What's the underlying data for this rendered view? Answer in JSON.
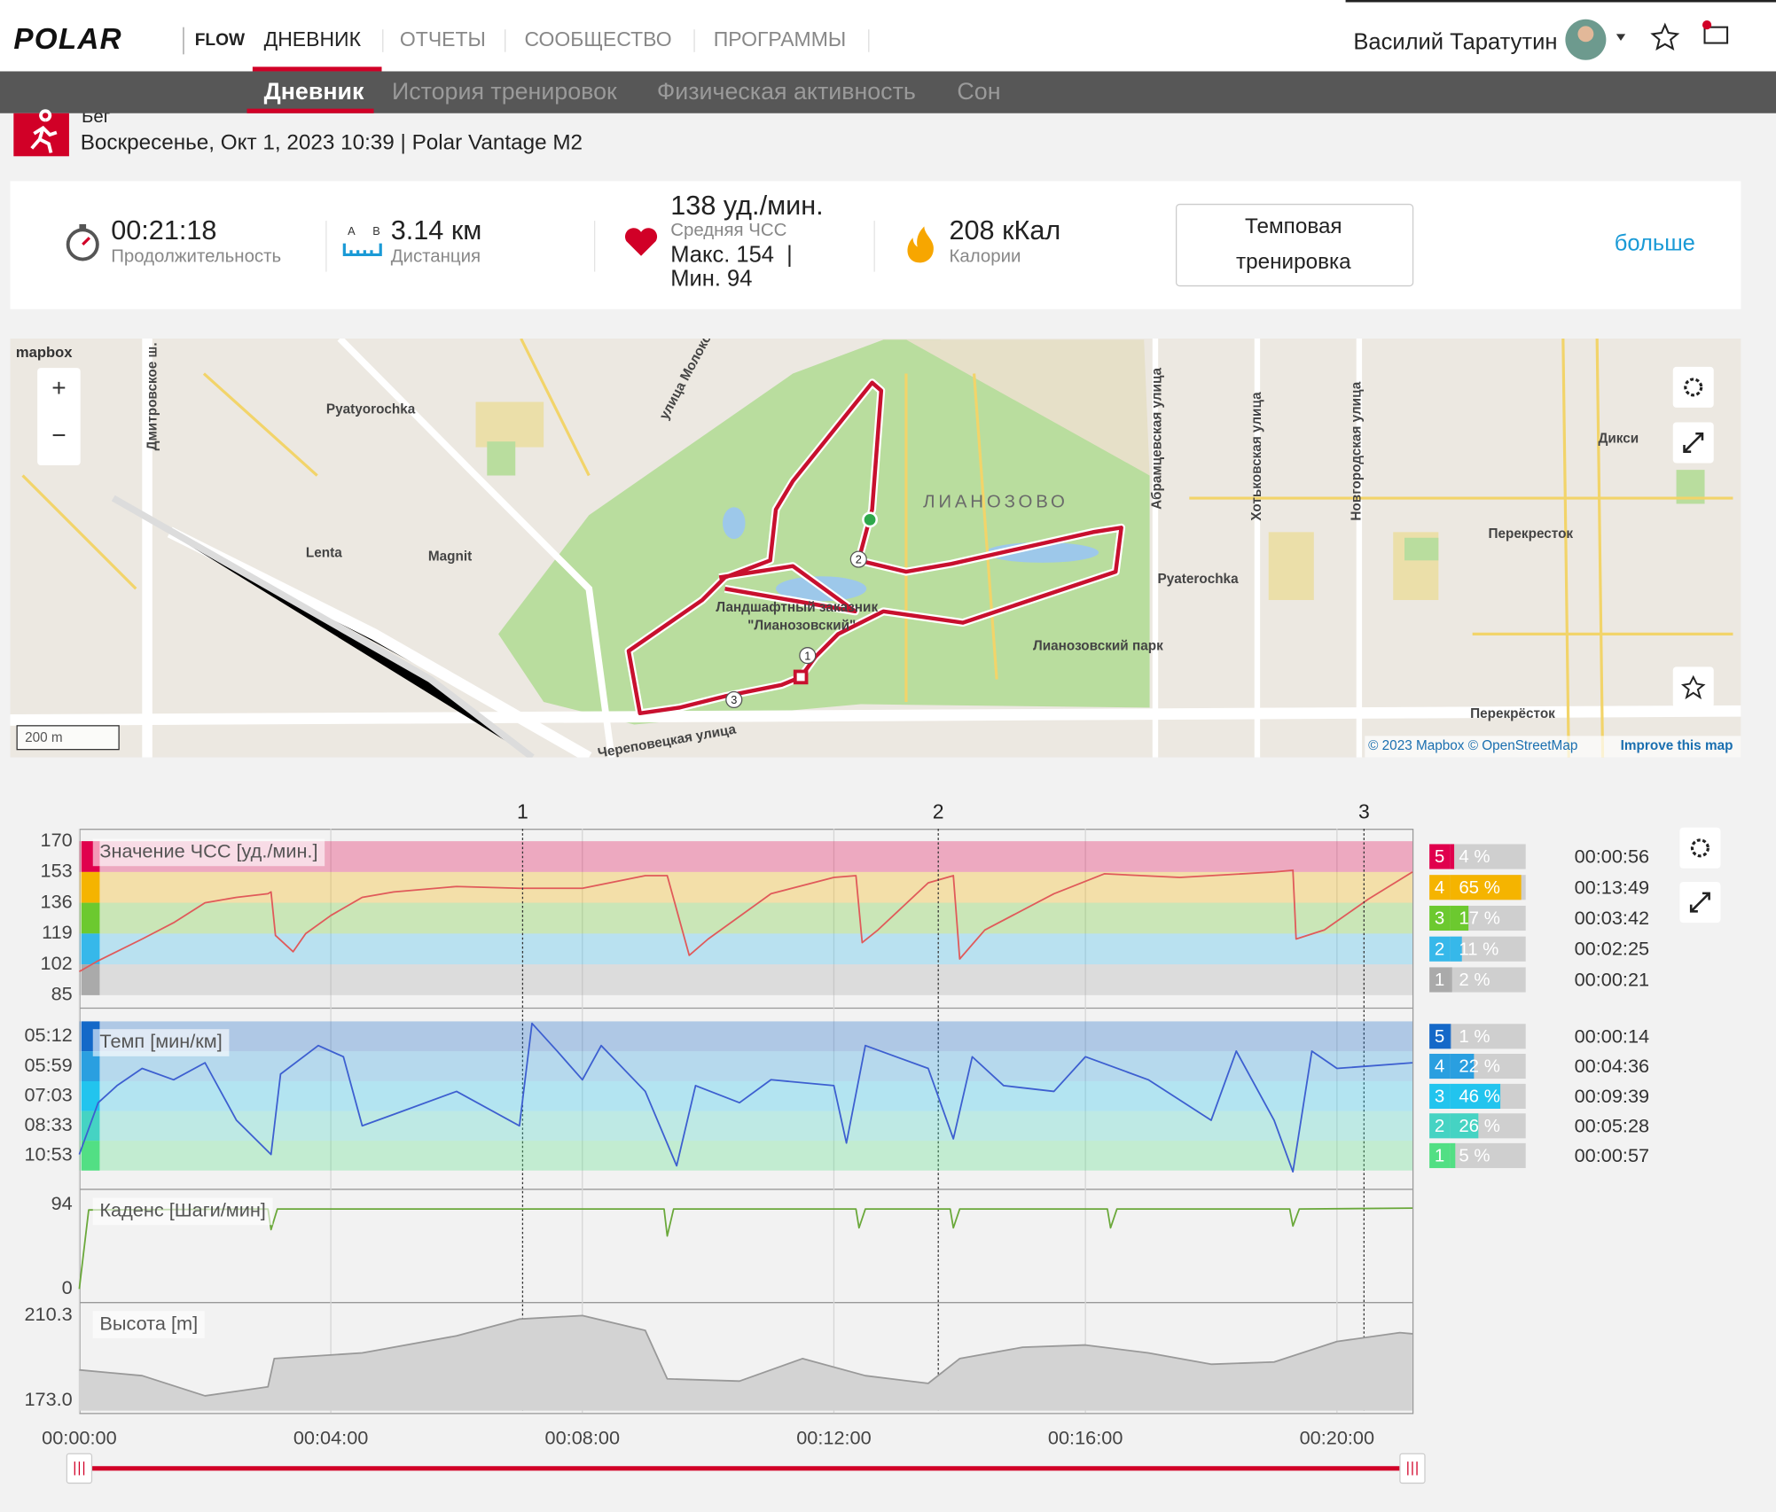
{
  "header": {
    "logo": "POLAR",
    "product": "FLOW",
    "nav": [
      "ДНЕВНИК",
      "ОТЧЕТЫ",
      "СООБЩЕСТВО",
      "ПРОГРАММЫ"
    ],
    "user": "Василий Таратутин"
  },
  "subnav": [
    "Дневник",
    "История тренировок",
    "Физическая активность",
    "Сон"
  ],
  "activity": {
    "sport": "Бег",
    "date": "Воскресенье, Окт 1, 2023 10:39 | Polar Vantage M2"
  },
  "summary": {
    "duration": {
      "value": "00:21:18",
      "label": "Продолжительность"
    },
    "distance": {
      "value": "3.14 км",
      "label": "Дистанция",
      "icon_a": "A",
      "icon_b": "B"
    },
    "heart_rate": {
      "value": "138 уд./мин.",
      "label": "Средняя ЧСС",
      "max": "Макс. 154  |",
      "min": "Мин. 94"
    },
    "calories": {
      "value": "208 кКал",
      "label": "Калории"
    },
    "training_type": [
      "Темповая",
      "тренировка"
    ],
    "more": "больше"
  },
  "map": {
    "logo": "mapbox",
    "zoom_in": "+",
    "zoom_out": "−",
    "scale": "200 m",
    "attribution": "© 2023 Mapbox © OpenStreetMap",
    "improve": "Improve this map",
    "labels": [
      "Pyatyorochka",
      "Lenta",
      "Magnit",
      "ЛИАНОЗОВО",
      "Pyaterochka",
      "Лианозовский парк",
      "Дикси",
      "Перекресток",
      "Перекрёсток",
      "улица Молокова",
      "Череповецкая улица",
      "Абрамцевская улица",
      "Хотьковская улица",
      "Новгородская улица",
      "Дмитровское ш.",
      "Ландшафтный заказник",
      "\"Лианозовский\""
    ],
    "lap_markers": [
      "1",
      "2",
      "3"
    ]
  },
  "chart_data": [
    {
      "type": "line",
      "title": "Значение ЧСС [уд./мин.]",
      "color": "#e05a5a",
      "x": [
        0,
        0.3,
        1,
        1.5,
        2,
        2.5,
        3,
        3.05,
        3.12,
        3.4,
        3.6,
        4,
        4.5,
        5,
        6,
        7,
        8,
        9,
        9.35,
        9.7,
        10,
        11,
        12,
        12.35,
        12.45,
        12.7,
        13.5,
        13.9,
        14,
        14.4,
        15.5,
        16.3,
        17.5,
        19,
        19.3,
        19.35,
        19.8,
        20.5,
        21.2
      ],
      "values": [
        98,
        104,
        116,
        125,
        136,
        139,
        141,
        142,
        118,
        109,
        119,
        129,
        139,
        142,
        145,
        144,
        144,
        151,
        151,
        107,
        116,
        141,
        150,
        151,
        114,
        121,
        147,
        151,
        105,
        121,
        141,
        152,
        150,
        153,
        154,
        116,
        121,
        138,
        153
      ],
      "xlim": [
        0,
        21.2
      ],
      "ylim": [
        80,
        175
      ],
      "yticks": [
        170,
        153,
        136,
        119,
        102,
        85
      ],
      "laps": [
        {
          "label": "1",
          "x": 7.05
        },
        {
          "label": "2",
          "x": 13.66
        },
        {
          "label": "3",
          "x": 20.43
        }
      ],
      "zones": [
        {
          "zone": 5,
          "percent": 4,
          "percent_label": "4 %",
          "time": "00:00:56",
          "color": "#e0004d"
        },
        {
          "zone": 4,
          "percent": 65,
          "percent_label": "65 %",
          "time": "00:13:49",
          "color": "#f5b400"
        },
        {
          "zone": 3,
          "percent": 17,
          "percent_label": "17 %",
          "time": "00:03:42",
          "color": "#6cc92f"
        },
        {
          "zone": 2,
          "percent": 11,
          "percent_label": "11 %",
          "time": "00:02:25",
          "color": "#36b8ea"
        },
        {
          "zone": 1,
          "percent": 2,
          "percent_label": "2 %",
          "time": "00:00:21",
          "color": "#aaaaaa"
        }
      ]
    },
    {
      "type": "line",
      "title": "Темп [мин/км]",
      "color": "#3d5fd0",
      "y_scale": "inverse",
      "x": [
        0,
        0.3,
        0.6,
        1,
        1.5,
        2,
        2.5,
        3.05,
        3.2,
        3.8,
        4.2,
        4.5,
        5,
        6,
        7,
        7.2,
        7.6,
        8,
        8.3,
        9,
        9.5,
        9.8,
        10.5,
        11,
        12,
        12.2,
        12.5,
        13.5,
        13.9,
        14.2,
        14.7,
        15.5,
        16,
        17,
        18,
        18.4,
        19,
        19.3,
        19.6,
        20,
        21.2
      ],
      "values": [
        10.77,
        7.33,
        6.63,
        6.05,
        6.42,
        5.88,
        8.22,
        10.77,
        6.23,
        5.42,
        5.71,
        8.55,
        7.9,
        6.85,
        8.55,
        4.92,
        5.56,
        6.42,
        5.42,
        6.85,
        12.0,
        6.63,
        7.33,
        6.42,
        6.63,
        9.76,
        5.42,
        6.05,
        9.43,
        5.71,
        6.63,
        6.85,
        5.71,
        6.42,
        8.22,
        5.56,
        8.22,
        12.77,
        5.56,
        6.05,
        5.88
      ],
      "xlim": [
        0,
        21.2
      ],
      "ylim": [
        13.6,
        4.9
      ],
      "yticks": [
        {
          "value": 5.2,
          "label": "05:12"
        },
        {
          "value": 5.983,
          "label": "05:59"
        },
        {
          "value": 7.05,
          "label": "07:03"
        },
        {
          "value": 8.55,
          "label": "08:33"
        },
        {
          "value": 10.883,
          "label": "10:53"
        }
      ],
      "zones": [
        {
          "zone": 5,
          "percent": 1,
          "percent_label": "1 %",
          "time": "00:00:14",
          "color": "#1468c8"
        },
        {
          "zone": 4,
          "percent": 22,
          "percent_label": "22 %",
          "time": "00:04:36",
          "color": "#2a9fe0"
        },
        {
          "zone": 3,
          "percent": 46,
          "percent_label": "46 %",
          "time": "00:09:39",
          "color": "#22c4ee"
        },
        {
          "zone": 2,
          "percent": 26,
          "percent_label": "26 %",
          "time": "00:05:28",
          "color": "#45d3c3"
        },
        {
          "zone": 1,
          "percent": 5,
          "percent_label": "5 %",
          "time": "00:00:57",
          "color": "#52df84"
        }
      ]
    },
    {
      "type": "line",
      "title": "Каденс [Шаги/мин]",
      "color": "#6aa83a",
      "x": [
        0,
        0.15,
        3,
        3.05,
        3.15,
        9.3,
        9.35,
        9.45,
        12.35,
        12.4,
        12.5,
        13.85,
        13.9,
        14,
        16.35,
        16.4,
        16.5,
        19.25,
        19.3,
        19.4,
        21.2
      ],
      "values": [
        0,
        88,
        89,
        66,
        89,
        89,
        59,
        89,
        89,
        68,
        89,
        89,
        68,
        89,
        89,
        68,
        89,
        89,
        70,
        89,
        90
      ],
      "xlim": [
        0,
        21.2
      ],
      "ylim": [
        -12,
        109
      ],
      "yticks": [
        94,
        0
      ]
    },
    {
      "type": "area",
      "title": "Высота [m]",
      "color": "#999999",
      "x": [
        0,
        1,
        2,
        3,
        3.1,
        4.5,
        6,
        7,
        8,
        9,
        9.35,
        10.5,
        11.5,
        12.5,
        13.5,
        14,
        15,
        16,
        17,
        18,
        19,
        20,
        21,
        21.2
      ],
      "values": [
        186.4,
        183.9,
        175,
        179,
        191.4,
        193.9,
        201.4,
        208.8,
        210.3,
        203.8,
        182.5,
        181.5,
        191.4,
        183.9,
        180.5,
        191.4,
        196.4,
        197.4,
        193.9,
        188.9,
        189.9,
        198.9,
        202.8,
        202.3
      ],
      "xlim": [
        0,
        21.2
      ],
      "ylim": [
        168.5,
        215.3
      ],
      "yticks": [
        210.3,
        {
          "value": 173,
          "label": "173.0"
        }
      ],
      "xticks": [
        {
          "value": 0,
          "label": "00:00:00"
        },
        {
          "value": 4,
          "label": "00:04:00"
        },
        {
          "value": 8,
          "label": "00:08:00"
        },
        {
          "value": 12,
          "label": "00:12:00"
        },
        {
          "value": 16,
          "label": "00:16:00"
        },
        {
          "value": 20,
          "label": "00:20:00"
        }
      ]
    }
  ]
}
